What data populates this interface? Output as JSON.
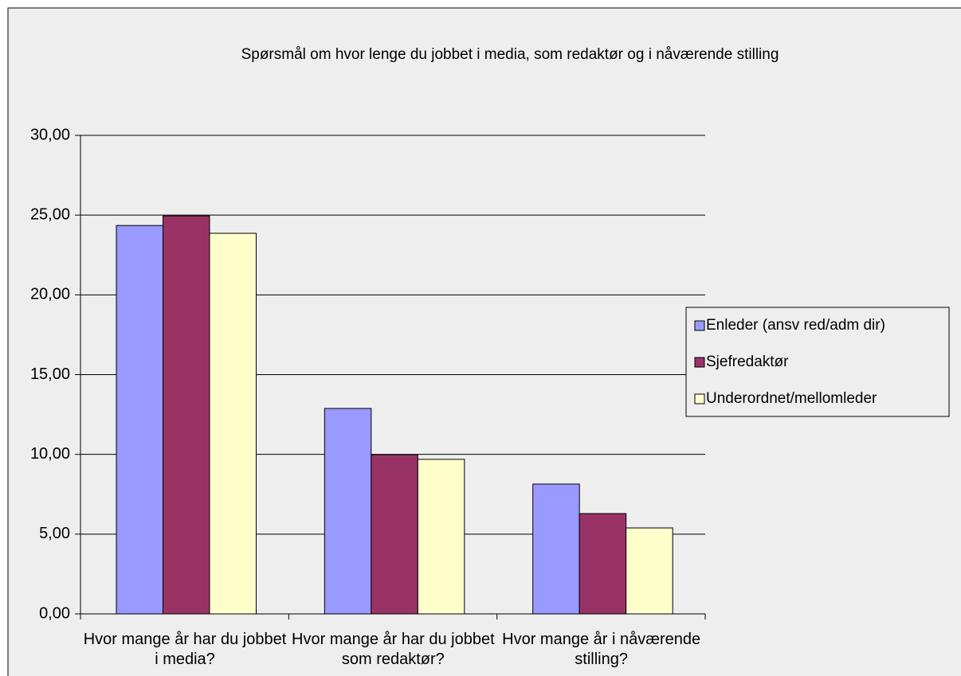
{
  "chart_data": {
    "type": "bar",
    "title": "Spørsmål om hvor lenge du jobbet i media, som redaktør og i nåværende stilling",
    "categories": [
      "Hvor mange år har du jobbet i media?",
      "Hvor mange år har du jobbet som redaktør?",
      "Hvor mange år i nåværende stilling?"
    ],
    "series": [
      {
        "name": "Enleder (ansv red/adm dir)",
        "color": "#9999ff",
        "values": [
          24.35,
          12.88,
          8.14
        ]
      },
      {
        "name": "Sjefredaktør",
        "color": "#993366",
        "values": [
          24.95,
          9.98,
          6.29
        ]
      },
      {
        "name": "Underordnet/mellomleder",
        "color": "#ffffcc",
        "values": [
          23.86,
          9.69,
          5.39
        ]
      }
    ],
    "ylim": [
      0,
      30
    ],
    "yticks": [
      {
        "value": 0,
        "label": "0,00"
      },
      {
        "value": 5,
        "label": "5,00"
      },
      {
        "value": 10,
        "label": "10,00"
      },
      {
        "value": 15,
        "label": "15,00"
      },
      {
        "value": 20,
        "label": "20,00"
      },
      {
        "value": 25,
        "label": "25,00"
      },
      {
        "value": 30,
        "label": "30,00"
      }
    ],
    "grid": true,
    "legend": "right"
  }
}
